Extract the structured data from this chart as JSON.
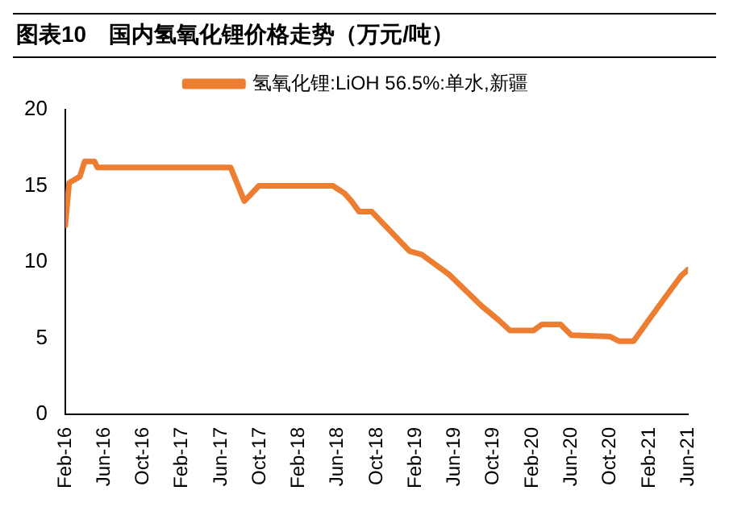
{
  "chart_data": {
    "type": "line",
    "title": "图表10　国内氢氧化锂价格走势（万元/吨）",
    "series": [
      {
        "name": "氢氧化锂:LiOH 56.5%:单水,新疆",
        "color": "#ed7d31",
        "x": [
          "2016-02-01",
          "2016-02-13",
          "2016-03-16",
          "2016-04-01",
          "2016-05-01",
          "2016-05-10",
          "2017-07-01",
          "2017-08-13",
          "2017-09-06",
          "2017-09-28",
          "2018-05-16",
          "2018-06-22",
          "2018-07-13",
          "2018-08-07",
          "2018-09-16",
          "2019-01-13",
          "2019-02-19",
          "2019-05-13",
          "2019-08-25",
          "2019-10-16",
          "2019-11-22",
          "2020-02-04",
          "2020-03-01",
          "2020-04-28",
          "2020-06-01",
          "2020-10-01",
          "2020-10-28",
          "2020-12-13",
          "2021-02-07",
          "2021-03-25",
          "2021-05-10",
          "2021-06-01"
        ],
        "values": [
          12.4,
          15.2,
          15.6,
          16.6,
          16.6,
          16.2,
          16.2,
          14.0,
          14.5,
          15.0,
          15.0,
          14.5,
          14.0,
          13.3,
          13.3,
          10.7,
          10.5,
          9.2,
          7.1,
          6.2,
          5.5,
          5.5,
          5.9,
          5.9,
          5.2,
          5.1,
          4.8,
          4.8,
          6.4,
          7.8,
          9.1,
          9.5
        ]
      }
    ],
    "xlim": [
      "2016-02",
      "2021-06"
    ],
    "xticks": [
      {
        "value": "2016-02",
        "label": "Feb-16"
      },
      {
        "value": "2016-06",
        "label": "Jun-16"
      },
      {
        "value": "2016-10",
        "label": "Oct-16"
      },
      {
        "value": "2017-02",
        "label": "Feb-17"
      },
      {
        "value": "2017-06",
        "label": "Jun-17"
      },
      {
        "value": "2017-10",
        "label": "Oct-17"
      },
      {
        "value": "2018-02",
        "label": "Feb-18"
      },
      {
        "value": "2018-06",
        "label": "Jun-18"
      },
      {
        "value": "2018-10",
        "label": "Oct-18"
      },
      {
        "value": "2019-02",
        "label": "Feb-19"
      },
      {
        "value": "2019-06",
        "label": "Jun-19"
      },
      {
        "value": "2019-10",
        "label": "Oct-19"
      },
      {
        "value": "2020-02",
        "label": "Feb-20"
      },
      {
        "value": "2020-06",
        "label": "Jun-20"
      },
      {
        "value": "2020-10",
        "label": "Oct-20"
      },
      {
        "value": "2021-02",
        "label": "Feb-21"
      },
      {
        "value": "2021-06",
        "label": "Jun-21"
      }
    ],
    "ylim": [
      0,
      20
    ],
    "yticks": [
      0,
      5,
      10,
      15,
      20
    ],
    "grid": false,
    "legend": "top",
    "marker": "none",
    "line_style": "solid"
  }
}
